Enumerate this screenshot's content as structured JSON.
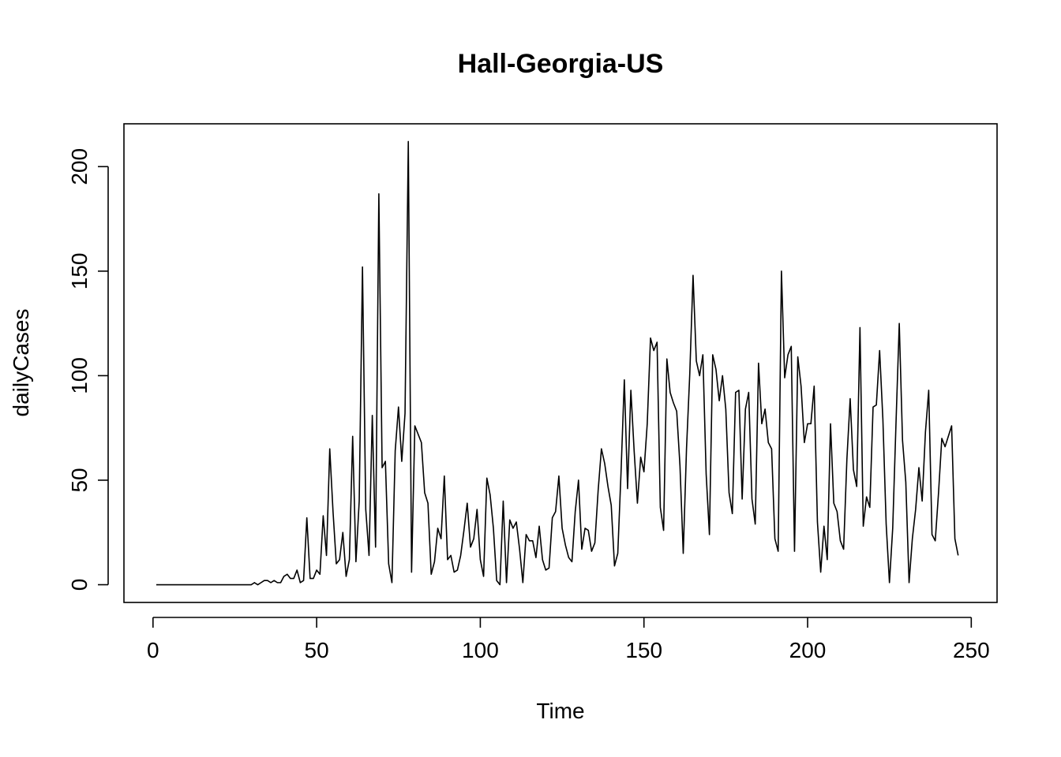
{
  "chart_data": {
    "type": "line",
    "title": "Hall-Georgia-US",
    "xlabel": "Time",
    "ylabel": "dailyCases",
    "xlim": [
      -8.88,
      257.88
    ],
    "ylim": [
      -8.48,
      220.48
    ],
    "x_ticks": [
      0,
      50,
      100,
      150,
      200,
      250
    ],
    "x_tick_labels": [
      "0",
      "50",
      "100",
      "150",
      "200",
      "250"
    ],
    "y_ticks": [
      0,
      50,
      100,
      150,
      200
    ],
    "y_tick_labels": [
      "0",
      "50",
      "100",
      "150",
      "200"
    ],
    "grid": false,
    "legend": "none",
    "line_color": "#000000",
    "x_start": 1,
    "x_step": 1,
    "series": [
      {
        "values": [
          0,
          0,
          0,
          0,
          0,
          0,
          0,
          0,
          0,
          0,
          0,
          0,
          0,
          0,
          0,
          0,
          0,
          0,
          0,
          0,
          0,
          0,
          0,
          0,
          0,
          0,
          0,
          0,
          0,
          0,
          1,
          0,
          1,
          2,
          2,
          1,
          2,
          1,
          1,
          4,
          5,
          3,
          3,
          7,
          1,
          2,
          32,
          3,
          3,
          7,
          5,
          33,
          14,
          65,
          35,
          10,
          12,
          25,
          4,
          12,
          71,
          11,
          40,
          152,
          36,
          14,
          81,
          18,
          187,
          56,
          59,
          10,
          1,
          64,
          85,
          59,
          82,
          212,
          6,
          76,
          72,
          68,
          44,
          39,
          5,
          11,
          27,
          22,
          52,
          12,
          14,
          6,
          7,
          14,
          26,
          39,
          18,
          22,
          36,
          12,
          4,
          51,
          43,
          27,
          2,
          0,
          40,
          1,
          31,
          27,
          30,
          17,
          1,
          24,
          21,
          21,
          13,
          28,
          12,
          7,
          8,
          32,
          35,
          52,
          27,
          19,
          13,
          11,
          35,
          50,
          17,
          27,
          26,
          16,
          20,
          45,
          65,
          58,
          47,
          38,
          9,
          15,
          54,
          98,
          46,
          93,
          64,
          39,
          61,
          54,
          77,
          118,
          112,
          116,
          37,
          26,
          108,
          92,
          87,
          83,
          57,
          15,
          65,
          101,
          148,
          107,
          100,
          110,
          53,
          24,
          110,
          103,
          88,
          100,
          84,
          44,
          34,
          92,
          93,
          41,
          84,
          92,
          41,
          29,
          106,
          77,
          84,
          68,
          65,
          22,
          16,
          150,
          99,
          110,
          114,
          16,
          109,
          95,
          68,
          77,
          77,
          95,
          30,
          6,
          28,
          12,
          77,
          39,
          35,
          21,
          17,
          60,
          89,
          55,
          47,
          123,
          28,
          42,
          37,
          85,
          86,
          112,
          79,
          29,
          1,
          27,
          77,
          125,
          69,
          49,
          1,
          22,
          36,
          56,
          40,
          73,
          93,
          24,
          21,
          44,
          70,
          66,
          71,
          76,
          22,
          14
        ]
      }
    ]
  }
}
